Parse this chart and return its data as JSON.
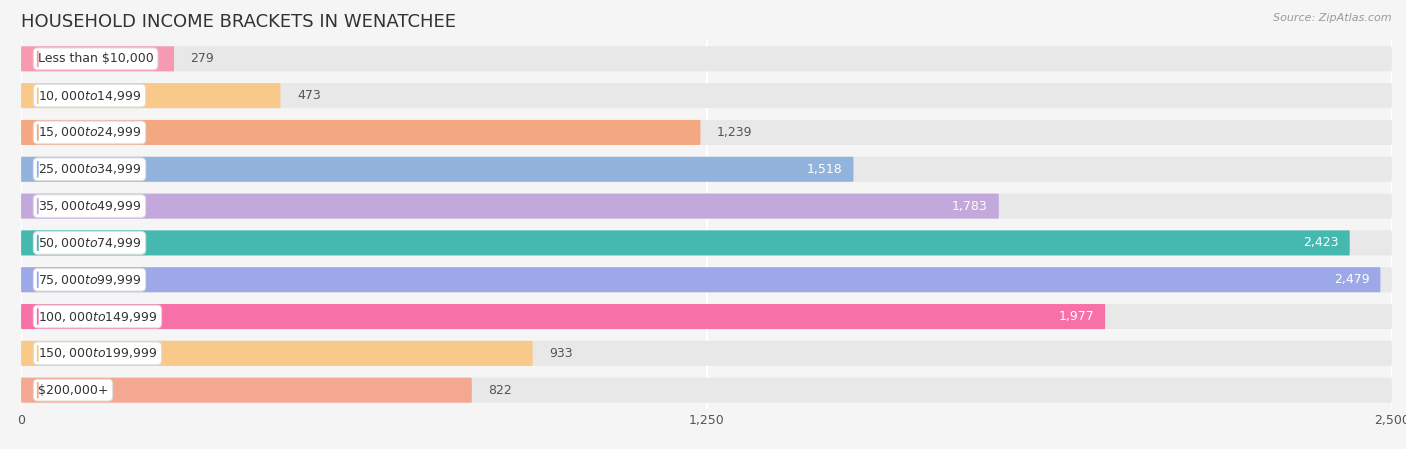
{
  "title": "HOUSEHOLD INCOME BRACKETS IN WENATCHEE",
  "source": "Source: ZipAtlas.com",
  "categories": [
    "Less than $10,000",
    "$10,000 to $14,999",
    "$15,000 to $24,999",
    "$25,000 to $34,999",
    "$35,000 to $49,999",
    "$50,000 to $74,999",
    "$75,000 to $99,999",
    "$100,000 to $149,999",
    "$150,000 to $199,999",
    "$200,000+"
  ],
  "values": [
    279,
    473,
    1239,
    1518,
    1783,
    2423,
    2479,
    1977,
    933,
    822
  ],
  "bar_colors": [
    "#f799b0",
    "#f9c98a",
    "#f4a882",
    "#92b4dc",
    "#c3a8dc",
    "#45b8b0",
    "#9da8e8",
    "#f870a8",
    "#f9c98a",
    "#f4a892"
  ],
  "value_inside": [
    false,
    false,
    false,
    true,
    true,
    true,
    true,
    true,
    false,
    false
  ],
  "xlim": [
    0,
    2500
  ],
  "xticks": [
    0,
    1250,
    2500
  ],
  "background_color": "#f5f5f5",
  "bar_bg_color": "#e8e8e8",
  "title_fontsize": 13,
  "label_fontsize": 9,
  "value_fontsize": 9
}
